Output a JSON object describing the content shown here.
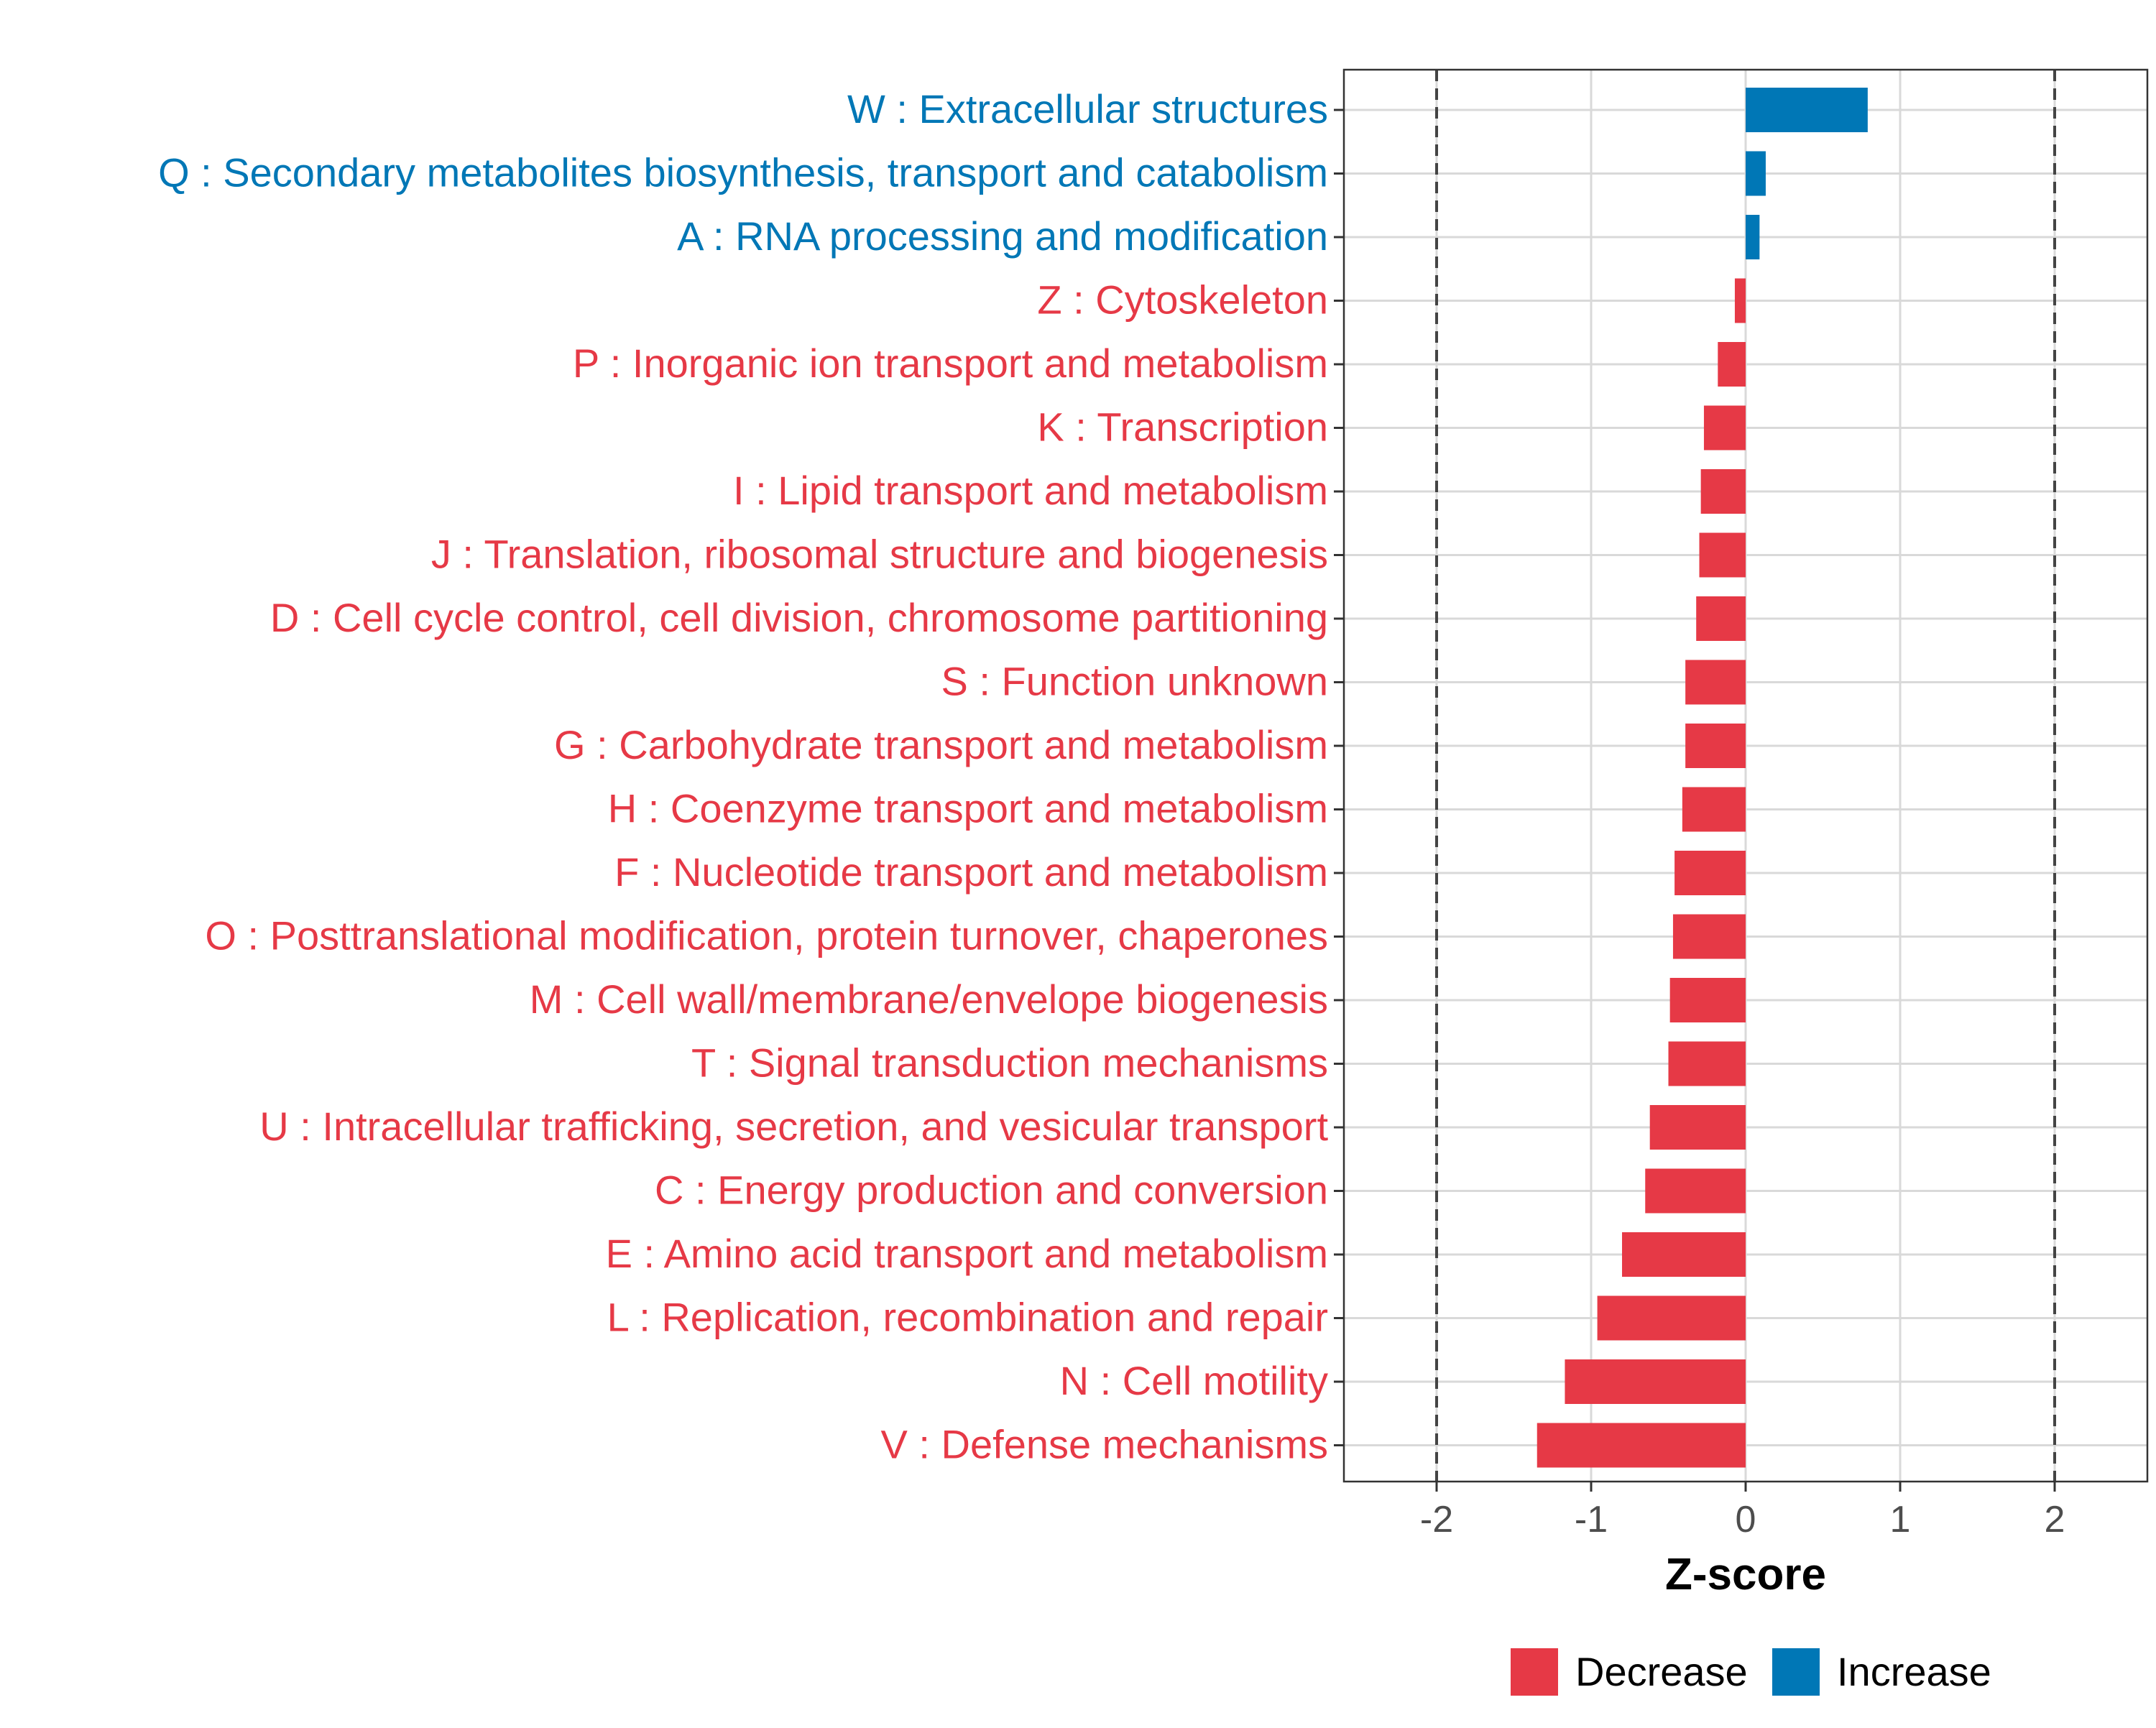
{
  "chart_data": {
    "type": "bar",
    "orientation": "horizontal",
    "title": "",
    "xlabel": "Z-score",
    "ylabel": "",
    "xlim": [
      -2.6,
      2.6
    ],
    "xticks": [
      -2,
      -1,
      0,
      1,
      2
    ],
    "xtick_labels": [
      "-2",
      "-1",
      "0",
      "1",
      "2"
    ],
    "reference_lines": [
      -2,
      2
    ],
    "grid": true,
    "colors": {
      "Decrease": "#e63946",
      "Increase": "#0077b6"
    },
    "legend": {
      "position": "bottom",
      "entries": [
        "Decrease",
        "Increase"
      ]
    },
    "categories": [
      "W : Extracellular structures",
      "Q : Secondary metabolites biosynthesis, transport and catabolism",
      "A : RNA processing and modification",
      "Z : Cytoskeleton",
      "P : Inorganic ion transport and metabolism",
      "K : Transcription",
      "I : Lipid transport and metabolism",
      "J : Translation, ribosomal structure and biogenesis",
      "D : Cell cycle control, cell division, chromosome partitioning",
      "S : Function unknown",
      "G : Carbohydrate transport and metabolism",
      "H : Coenzyme transport and metabolism",
      "F : Nucleotide transport and metabolism",
      "O : Posttranslational modification, protein turnover, chaperones",
      "M : Cell wall/membrane/envelope biogenesis",
      "T : Signal transduction mechanisms",
      "U : Intracellular trafficking, secretion, and vesicular transport",
      "C : Energy production and conversion",
      "E : Amino acid transport and metabolism",
      "L : Replication, recombination and repair",
      "N : Cell motility",
      "V : Defense mechanisms"
    ],
    "values": [
      0.79,
      0.13,
      0.09,
      -0.07,
      -0.18,
      -0.27,
      -0.29,
      -0.3,
      -0.32,
      -0.39,
      -0.39,
      -0.41,
      -0.46,
      -0.47,
      -0.49,
      -0.5,
      -0.62,
      -0.65,
      -0.8,
      -0.96,
      -1.17,
      -1.35
    ],
    "groups": [
      "Increase",
      "Increase",
      "Increase",
      "Decrease",
      "Decrease",
      "Decrease",
      "Decrease",
      "Decrease",
      "Decrease",
      "Decrease",
      "Decrease",
      "Decrease",
      "Decrease",
      "Decrease",
      "Decrease",
      "Decrease",
      "Decrease",
      "Decrease",
      "Decrease",
      "Decrease",
      "Decrease",
      "Decrease"
    ]
  }
}
